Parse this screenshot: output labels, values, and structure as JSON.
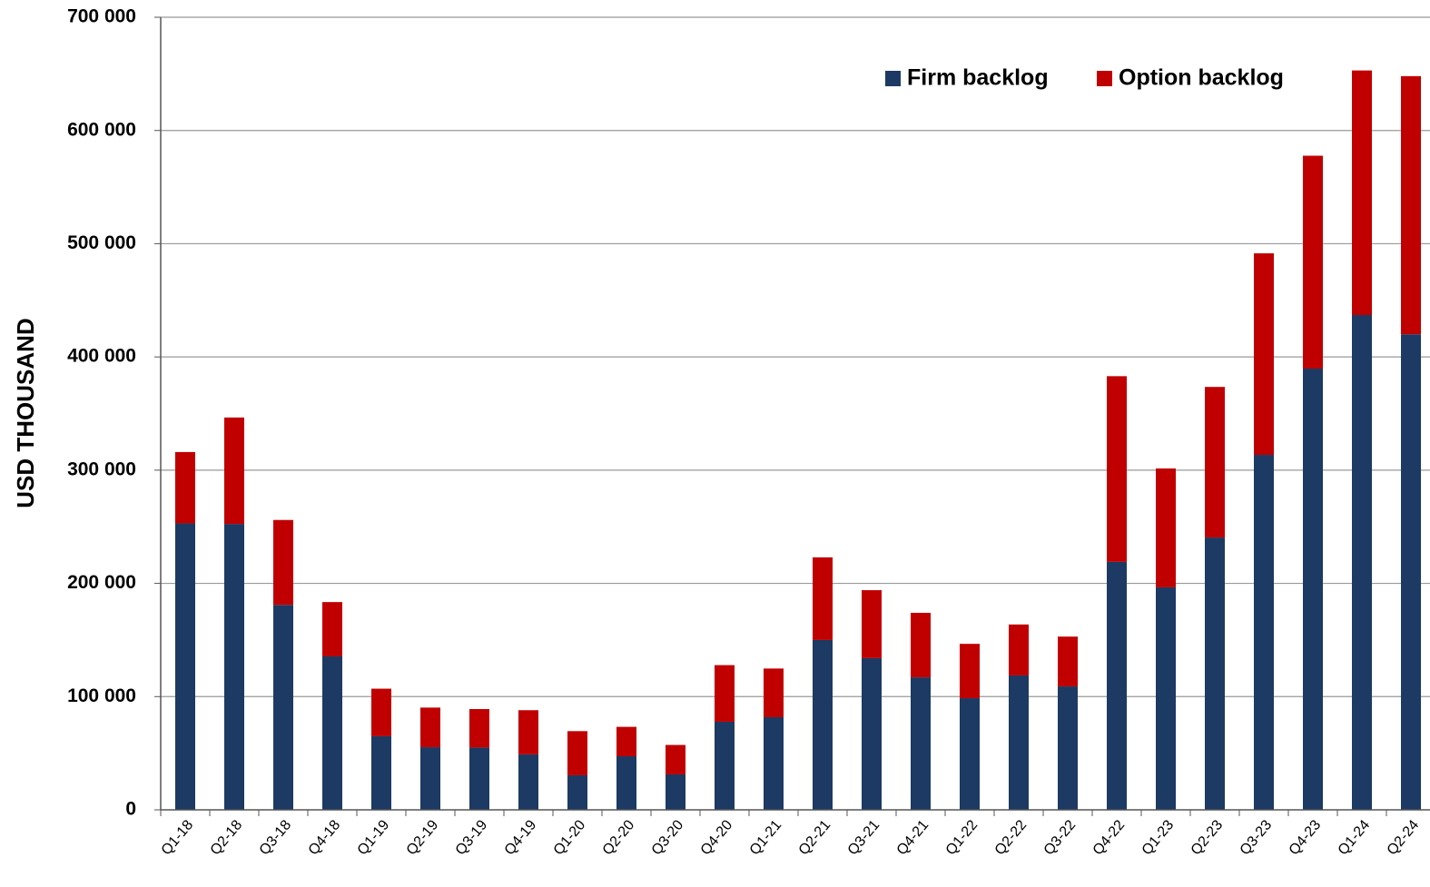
{
  "chart_data": {
    "type": "stacked_bar",
    "ylabel": "USD THOUSAND",
    "categories": [
      "Q1-18",
      "Q2-18",
      "Q3-18",
      "Q4-18",
      "Q1-19",
      "Q2-19",
      "Q3-19",
      "Q4-19",
      "Q1-20",
      "Q2-20",
      "Q3-20",
      "Q4-20",
      "Q1-21",
      "Q2-21",
      "Q3-21",
      "Q4-21",
      "Q1-22",
      "Q2-22",
      "Q3-22",
      "Q4-22",
      "Q1-23",
      "Q2-23",
      "Q3-23",
      "Q4-23",
      "Q1-24",
      "Q2-24"
    ],
    "series": [
      {
        "name": "Firm backlog",
        "color": "#1c3a63",
        "values": [
          253000,
          252500,
          181000,
          135500,
          65000,
          55300,
          55000,
          49000,
          30500,
          47300,
          31300,
          77800,
          81800,
          150000,
          134000,
          117000,
          98600,
          118700,
          109000,
          219000,
          196500,
          240500,
          313500,
          389700,
          437000,
          420000
        ]
      },
      {
        "name": "Option backlog",
        "color": "#c00000",
        "values": [
          63000,
          94000,
          75000,
          48000,
          42000,
          35000,
          34000,
          39000,
          39000,
          26000,
          26000,
          50000,
          43000,
          73000,
          60000,
          57000,
          48000,
          45000,
          44000,
          164000,
          105000,
          133000,
          178000,
          188000,
          216000,
          228000
        ]
      }
    ],
    "ylim": [
      0,
      700000
    ],
    "yticks": [
      {
        "value": 0,
        "label": "0"
      },
      {
        "value": 100000,
        "label": "100 000"
      },
      {
        "value": 200000,
        "label": "200 000"
      },
      {
        "value": 300000,
        "label": "300 000"
      },
      {
        "value": 400000,
        "label": "400 000"
      },
      {
        "value": 500000,
        "label": "500 000"
      },
      {
        "value": 600000,
        "label": "600 000"
      },
      {
        "value": 700000,
        "label": "700 000"
      }
    ],
    "grid": true,
    "legend": "upper right"
  }
}
